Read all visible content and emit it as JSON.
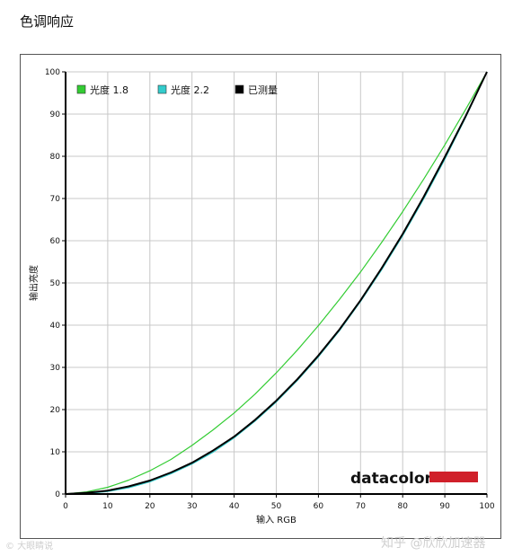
{
  "page_title": "色调响应",
  "watermark_right": "知乎 @欣欣加速器",
  "watermark_left": "© 大眼睛说",
  "brand": {
    "name": "datacolor",
    "bar_color": "#d0202a"
  },
  "chart_data": {
    "type": "line",
    "xlabel": "输入 RGB",
    "ylabel": "输出亮度",
    "xlim": [
      0,
      100
    ],
    "ylim": [
      0,
      100
    ],
    "xticks": [
      0,
      10,
      20,
      30,
      40,
      50,
      60,
      70,
      80,
      90,
      100
    ],
    "yticks": [
      0,
      10,
      20,
      30,
      40,
      50,
      60,
      70,
      80,
      90,
      100
    ],
    "grid": true,
    "legend_position": "top-left",
    "series": [
      {
        "name": "光度 1.8",
        "color": "#33cc33",
        "x": [
          0,
          5,
          10,
          15,
          20,
          25,
          30,
          35,
          40,
          45,
          50,
          55,
          60,
          65,
          70,
          75,
          80,
          85,
          90,
          95,
          100
        ],
        "y": [
          0,
          0.5,
          1.6,
          3.3,
          5.5,
          8.2,
          11.5,
          15.2,
          19.2,
          23.7,
          28.7,
          34.1,
          39.9,
          46.1,
          52.6,
          59.6,
          66.9,
          74.6,
          82.7,
          91.2,
          100
        ]
      },
      {
        "name": "光度 2.2",
        "color": "#33cccc",
        "x": [
          0,
          5,
          10,
          15,
          20,
          25,
          30,
          35,
          40,
          45,
          50,
          55,
          60,
          65,
          70,
          75,
          80,
          85,
          90,
          95,
          100
        ],
        "y": [
          0,
          0.1,
          0.6,
          1.5,
          2.9,
          4.8,
          7.1,
          9.9,
          13.3,
          17.3,
          21.8,
          26.9,
          32.5,
          38.7,
          45.6,
          53.1,
          61.2,
          69.9,
          79.3,
          89.3,
          100
        ]
      },
      {
        "name": "已测量",
        "color": "#000000",
        "x": [
          0,
          5,
          10,
          15,
          20,
          25,
          30,
          35,
          40,
          45,
          50,
          55,
          60,
          65,
          70,
          75,
          80,
          85,
          90,
          95,
          100
        ],
        "y": [
          0,
          0.3,
          0.8,
          1.8,
          3.2,
          5.1,
          7.4,
          10.3,
          13.6,
          17.6,
          22.1,
          27.2,
          32.8,
          39.0,
          45.9,
          53.5,
          61.6,
          70.4,
          79.8,
          89.6,
          100
        ]
      }
    ]
  }
}
